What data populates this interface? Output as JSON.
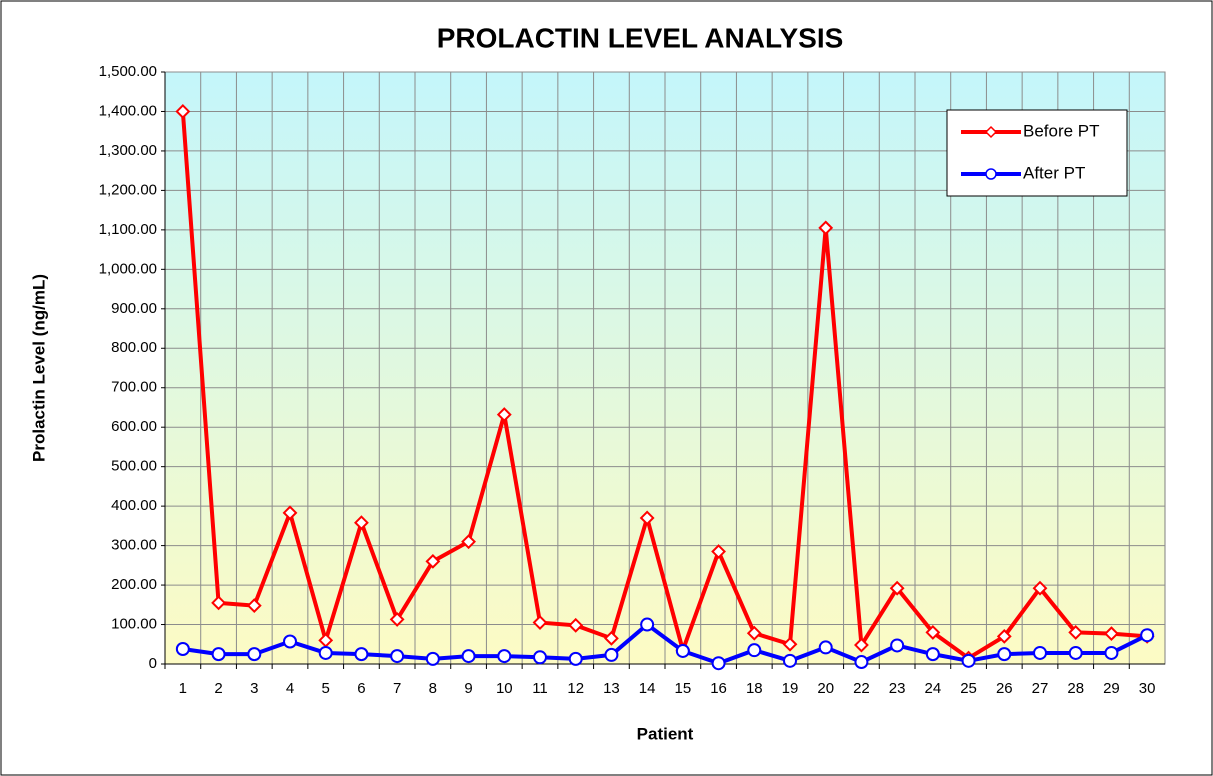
{
  "chart_data": {
    "type": "line",
    "title": "PROLACTIN LEVEL ANALYSIS",
    "x_label": "Patient",
    "y_label": "Prolactin Level (ng/mL)",
    "categories": [
      "1",
      "2",
      "3",
      "4",
      "5",
      "6",
      "7",
      "8",
      "9",
      "10",
      "11",
      "12",
      "13",
      "14",
      "15",
      "16",
      "18",
      "19",
      "20",
      "22",
      "23",
      "24",
      "25",
      "26",
      "27",
      "28",
      "29",
      "30"
    ],
    "series": [
      {
        "name": "Before PT",
        "color": "#ff0000",
        "marker": "diamond",
        "values": [
          1400,
          155,
          148,
          383,
          60,
          358,
          113,
          260,
          310,
          632,
          105,
          98,
          65,
          370,
          35,
          285,
          78,
          50,
          1105,
          48,
          192,
          80,
          15,
          70,
          192,
          80,
          77,
          70
        ]
      },
      {
        "name": "After PT",
        "color": "#0000ff",
        "marker": "circle",
        "values": [
          38,
          25,
          25,
          57,
          28,
          25,
          20,
          13,
          20,
          20,
          17,
          13,
          23,
          100,
          33,
          2,
          35,
          8,
          42,
          5,
          47,
          25,
          8,
          25,
          28,
          28,
          28,
          73
        ]
      }
    ],
    "ylim": [
      0,
      1500
    ],
    "yticks": [
      0,
      {
        "value": 100,
        "label": "100.00"
      },
      {
        "value": 200,
        "label": "200.00"
      },
      {
        "value": 300,
        "label": "300.00"
      },
      {
        "value": 400,
        "label": "400.00"
      },
      {
        "value": 500,
        "label": "500.00"
      },
      {
        "value": 600,
        "label": "600.00"
      },
      {
        "value": 700,
        "label": "700.00"
      },
      {
        "value": 800,
        "label": "800.00"
      },
      {
        "value": 900,
        "label": "900.00"
      },
      {
        "value": 1000,
        "label": "1,000.00"
      },
      {
        "value": 1100,
        "label": "1,100.00"
      },
      {
        "value": 1200,
        "label": "1,200.00"
      },
      {
        "value": 1300,
        "label": "1,300.00"
      },
      {
        "value": 1400,
        "label": "1,400.00"
      },
      {
        "value": 1500,
        "label": "1,500.00"
      }
    ],
    "grid": true,
    "legend": "upper right"
  }
}
